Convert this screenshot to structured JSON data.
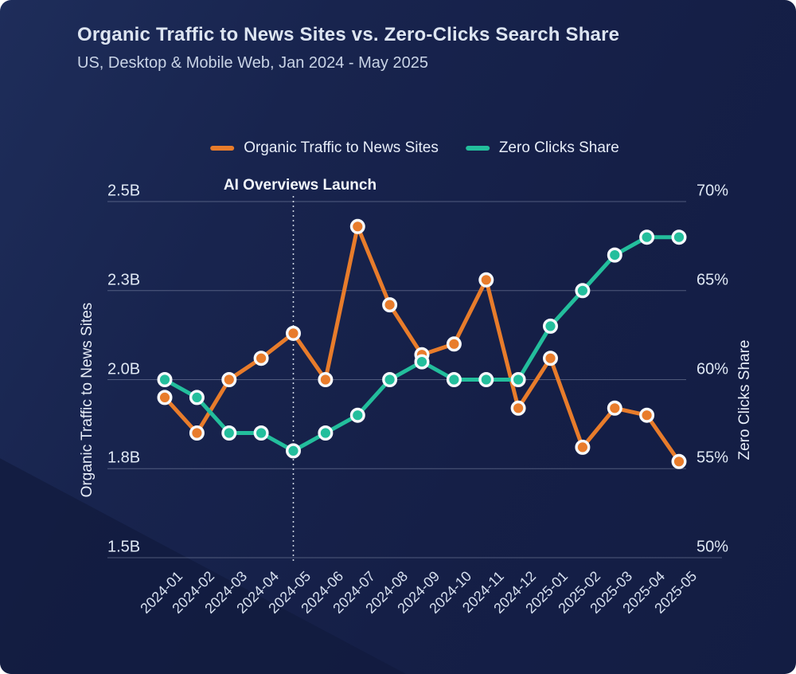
{
  "header": {
    "title": "Organic Traffic to News Sites vs. Zero-Clicks Search Share",
    "subtitle": "US, Desktop & Mobile Web, Jan 2024 - May 2025"
  },
  "legend": [
    {
      "label": "Organic Traffic to News Sites",
      "color": "#E87C2B"
    },
    {
      "label": "Zero Clicks Share",
      "color": "#23BE9C"
    }
  ],
  "colors": {
    "background": "#16224A",
    "organic": "#E87C2B",
    "zero_clicks": "#23BE9C",
    "marker_ring": "#F7FAFD",
    "gridline": "rgba(205,216,236,0.32)",
    "annotation_line": "rgba(235,242,250,0.85)"
  },
  "chart_data": {
    "type": "line",
    "title": "Organic Traffic to News Sites vs. Zero-Clicks Search Share",
    "subtitle": "US, Desktop & Mobile Web, Jan 2024 - May 2025",
    "grid": true,
    "legend_position": "top",
    "x": [
      "2024-01",
      "2024-02",
      "2024-03",
      "2024-04",
      "2024-05",
      "2024-06",
      "2024-07",
      "2024-08",
      "2024-09",
      "2024-10",
      "2024-11",
      "2024-12",
      "2025-01",
      "2025-02",
      "2025-03",
      "2025-04",
      "2025-05"
    ],
    "series": [
      {
        "name": "Organic Traffic to News Sites",
        "axis": "left",
        "unit": "billions of visits",
        "color": "#E87C2B",
        "values": [
          1.95,
          1.85,
          2.0,
          2.06,
          2.13,
          2.0,
          2.43,
          2.21,
          2.07,
          2.1,
          2.28,
          1.92,
          2.06,
          1.81,
          1.92,
          1.9,
          1.77
        ]
      },
      {
        "name": "Zero Clicks Share",
        "axis": "right",
        "unit": "%",
        "color": "#23BE9C",
        "values": [
          60,
          59,
          57,
          57,
          56,
          57,
          58,
          60,
          61,
          60,
          60,
          60,
          63,
          65,
          67,
          68,
          68
        ]
      }
    ],
    "left_axis": {
      "label": "Organic Traffic to News Sites",
      "ticks": [
        "2.5B",
        "2.3B",
        "2.0B",
        "1.8B",
        "1.5B"
      ],
      "tick_values": [
        2.5,
        2.25,
        2.0,
        1.75,
        1.5
      ],
      "range": [
        1.5,
        2.5
      ]
    },
    "right_axis": {
      "label": "Zero Clicks Share",
      "ticks": [
        "70%",
        "65%",
        "60%",
        "55%",
        "50%"
      ],
      "tick_values": [
        70,
        65,
        60,
        55,
        50
      ],
      "range": [
        50,
        70
      ]
    },
    "annotation": {
      "label": "AI Overviews Launch",
      "x": "2024-05"
    }
  }
}
